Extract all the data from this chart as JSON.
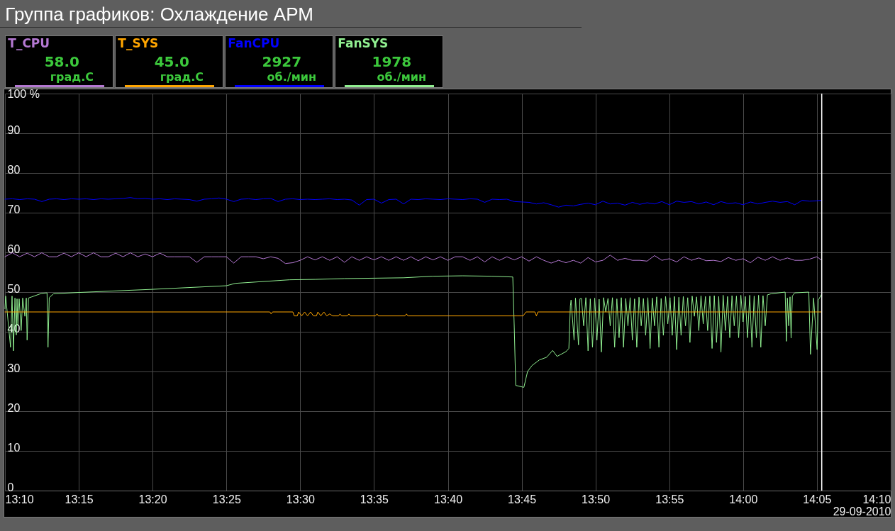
{
  "chart_data": {
    "type": "line",
    "title": "Группа графиков: Охлаждение АРМ",
    "xlabel": "29-09-2010",
    "x": [
      13.1667,
      13.175,
      13.1833,
      13.1917,
      13.2,
      13.2083,
      13.2167,
      13.225,
      13.2333,
      13.2417,
      13.25,
      13.2583,
      13.2667,
      13.275,
      13.2833,
      13.2917,
      13.3,
      13.3083,
      13.3167,
      13.325,
      13.3333,
      13.3417,
      13.35,
      13.3583,
      13.3667,
      13.375,
      13.3833,
      13.3917,
      13.4,
      13.4083,
      13.4167,
      13.425,
      13.4333,
      13.4417,
      13.45,
      13.4583,
      13.4667,
      13.475,
      13.4833,
      13.4917,
      13.5,
      13.5083,
      13.5167,
      13.525,
      13.5333,
      13.5417,
      13.55,
      13.5583,
      13.5667,
      13.575,
      13.5833,
      13.5917,
      13.6,
      13.6083,
      13.6167,
      13.625,
      13.6333,
      13.6417,
      13.65,
      13.6583,
      13.6667,
      13.675,
      13.6833,
      13.6917,
      13.7,
      13.7083,
      13.7167,
      13.725,
      13.7333,
      13.7417,
      13.75,
      13.7583,
      13.7667,
      13.775,
      13.7833,
      13.7917,
      13.8,
      13.8083,
      13.8167,
      13.825,
      13.8333,
      13.8417,
      13.85,
      13.8583,
      13.8667,
      13.875,
      13.8833,
      13.8917,
      13.9,
      13.9083,
      13.9167,
      13.925,
      13.9333,
      13.9417,
      13.95,
      13.9583,
      13.9667,
      13.975,
      13.9833,
      13.9917,
      14,
      14.0083,
      14.0167,
      14.025,
      14.0333,
      14.0417,
      14.05,
      14.0583,
      14.0667,
      14.075,
      14.0833,
      14.0888
    ],
    "series": [
      {
        "name": "T_CPU",
        "color": "#b478d2",
        "values": [
          58.9,
          59.9,
          58.9,
          59.8,
          58.9,
          59.9,
          58.9,
          58.9,
          59.8,
          58.9,
          59.9,
          58.9,
          59.9,
          58.9,
          58.9,
          59.8,
          58.9,
          59.9,
          58.9,
          59.6,
          58.9,
          59.8,
          58.9,
          58.9,
          58.9,
          58.9,
          57.5,
          58.9,
          58.9,
          58.9,
          58.9,
          57.3,
          58.9,
          58.9,
          58.9,
          58.4,
          58.9,
          58.5,
          57.2,
          57.4,
          58.0,
          58.9,
          58.1,
          58.9,
          58.0,
          58.9,
          57.5,
          58.9,
          58.0,
          58.9,
          58.1,
          58.9,
          58.0,
          58.9,
          58.0,
          58.9,
          57.9,
          58.9,
          58.1,
          58.9,
          58.0,
          58.9,
          58.9,
          58.0,
          58.9,
          57.6,
          58.9,
          58.0,
          58.9,
          58.1,
          58.9,
          57.8,
          58.9,
          58.0,
          57.3,
          58.0,
          57.4,
          58.0,
          57.3,
          58.7,
          57.6,
          58.0,
          59.3,
          58.0,
          58.5,
          58.0,
          58.0,
          57.8,
          59.2,
          58.0,
          58.4,
          57.6,
          58.9,
          58.0,
          58.6,
          57.9,
          58.0,
          57.7,
          58.7,
          58.0,
          58.4,
          57.4,
          58.8,
          58.0,
          58.9,
          58.0,
          58.6,
          58.0,
          58.0,
          58.3,
          58.9,
          58.0
        ]
      },
      {
        "name": "T_SYS",
        "color": "#ffa500",
        "x": [
          13.1667,
          13.4657,
          13.4672,
          13.4688,
          13.4917,
          13.4933,
          13.4967,
          13.4983,
          13.5017,
          13.505,
          13.5083,
          13.5117,
          13.515,
          13.5183,
          13.52,
          13.5233,
          13.5267,
          13.53,
          13.5333,
          13.5367,
          13.5433,
          13.545,
          13.5467,
          13.5533,
          13.555,
          13.5567,
          13.585,
          13.5867,
          13.5883,
          13.6183,
          13.62,
          13.6217,
          13.7517,
          13.7533,
          13.755,
          13.765,
          13.7667,
          13.7683,
          14.0888
        ],
        "values": [
          45.0,
          45.0,
          44.5,
          45.0,
          45.0,
          44.0,
          44.0,
          45.0,
          44.0,
          45.0,
          44.0,
          45.0,
          44.0,
          44.0,
          45.0,
          44.0,
          45.0,
          44.0,
          44.5,
          44.0,
          44.0,
          44.5,
          44.0,
          44.0,
          44.5,
          44.0,
          44.0,
          44.5,
          44.0,
          44.0,
          44.5,
          44.0,
          44.0,
          44.5,
          45.0,
          45.0,
          44.0,
          45.0,
          45.0
        ]
      },
      {
        "name": "FanCPU",
        "color": "#0000ff",
        "values": [
          73.4,
          73.5,
          73.3,
          73.5,
          73.4,
          72.8,
          73.4,
          73.5,
          73.3,
          73.5,
          73.4,
          73.5,
          73.3,
          73.5,
          73.4,
          73.5,
          73.6,
          73.8,
          73.5,
          73.6,
          73.4,
          73.5,
          73.3,
          73.5,
          73.4,
          73.3,
          72.9,
          73.4,
          73.5,
          73.7,
          73.4,
          72.8,
          73.4,
          73.5,
          73.3,
          73.5,
          73.6,
          72.8,
          73.4,
          73.5,
          73.3,
          73.4,
          73.3,
          73.4,
          73.5,
          73.3,
          73.4,
          73.2,
          71.9,
          73.3,
          73.4,
          72.4,
          73.3,
          73.4,
          72.2,
          73.4,
          73.3,
          73.5,
          73.4,
          73.3,
          73.5,
          73.4,
          73.3,
          73.5,
          73.4,
          72.6,
          73.4,
          73.3,
          73.4,
          72.8,
          72.7,
          72.6,
          72.2,
          72.5,
          72.0,
          71.4,
          71.9,
          71.7,
          72.1,
          72.4,
          72.0,
          72.9,
          72.2,
          72.4,
          71.9,
          72.6,
          72.1,
          72.5,
          72.2,
          72.8,
          72.0,
          72.9,
          72.6,
          72.8,
          72.2,
          72.7,
          72.0,
          72.8,
          72.3,
          72.5,
          72.0,
          72.7,
          72.2,
          72.6,
          72.9,
          72.6,
          72.8,
          72.0,
          73.1,
          72.9,
          73.0,
          73.1
        ]
      },
      {
        "name": "FanSYS",
        "color": "#90ee90",
        "x": [
          13.1667,
          13.1675,
          13.173,
          13.1747,
          13.1763,
          13.178,
          13.1795,
          13.1803,
          13.1813,
          13.1827,
          13.185,
          13.1867,
          13.1892,
          13.1908,
          13.1917,
          13.1933,
          13.197,
          13.2083,
          13.2142,
          13.2153,
          13.2167,
          13.2217,
          13.25,
          13.3333,
          13.4167,
          13.4267,
          13.4883,
          13.5167,
          13.55,
          13.5833,
          13.6167,
          13.65,
          13.6833,
          13.7167,
          13.74,
          13.7417,
          13.7433,
          13.7525,
          13.7567,
          13.7617,
          13.77,
          13.7783,
          13.785,
          13.79,
          13.8,
          13.8033,
          13.805,
          13.8058,
          13.8092,
          13.8108,
          13.8142,
          13.8158,
          13.8175,
          13.82,
          13.8225,
          13.825,
          13.8275,
          13.83,
          13.8325,
          13.835,
          13.8375,
          13.84,
          13.8425,
          13.845,
          13.8475,
          13.85,
          13.8525,
          13.855,
          13.8575,
          13.86,
          13.8625,
          13.865,
          13.8675,
          13.87,
          13.8725,
          13.875,
          13.8775,
          13.88,
          13.8825,
          13.885,
          13.8875,
          13.89,
          13.8925,
          13.895,
          13.8975,
          13.9,
          13.9025,
          13.905,
          13.9075,
          13.91,
          13.9125,
          13.915,
          13.9175,
          13.92,
          13.9225,
          13.925,
          13.9275,
          13.93,
          13.9325,
          13.935,
          13.9375,
          13.94,
          13.9425,
          13.945,
          13.9475,
          13.95,
          13.9525,
          13.955,
          13.9575,
          13.96,
          13.9625,
          13.965,
          13.9675,
          13.97,
          13.9725,
          13.975,
          13.9775,
          13.98,
          13.9825,
          13.985,
          13.9875,
          13.99,
          13.9925,
          13.995,
          13.9975,
          14,
          14.0025,
          14.005,
          14.0075,
          14.01,
          14.0125,
          14.015,
          14.0175,
          14.02,
          14.0225,
          14.025,
          14.0275,
          14.032,
          14.0475,
          14.0489,
          14.05,
          14.0515,
          14.053,
          14.0542,
          14.0556,
          14.0582,
          14.0742,
          14.0761,
          14.0796,
          14.0836,
          14.0849,
          14.0888
        ],
        "values": [
          45.8,
          49.0,
          36.1,
          49.0,
          35.2,
          48.5,
          39.2,
          48.3,
          41.5,
          48.3,
          40.3,
          48.5,
          43.9,
          48.5,
          37.9,
          48.5,
          48.8,
          49.7,
          49.8,
          36.1,
          48.6,
          49.6,
          49.9,
          50.7,
          51.6,
          52.2,
          53.1,
          53.2,
          53.4,
          53.5,
          53.6,
          54.0,
          54.1,
          54.0,
          53.8,
          40.9,
          26.5,
          26.0,
          30.0,
          31.5,
          32.9,
          33.6,
          35.3,
          33.8,
          35.0,
          35.8,
          46.5,
          48.0,
          37.9,
          48.5,
          36.7,
          48.3,
          48.4,
          41.5,
          48.6,
          35.2,
          48.3,
          36.1,
          48.5,
          37.9,
          48.2,
          34.9,
          48.6,
          45.0,
          48.4,
          41.5,
          48.6,
          36.1,
          48.3,
          38.5,
          48.6,
          36.1,
          48.4,
          41.5,
          48.6,
          37.9,
          48.3,
          36.1,
          48.7,
          41.5,
          48.4,
          39.1,
          48.6,
          35.8,
          48.5,
          41.5,
          48.8,
          36.1,
          48.4,
          39.1,
          48.9,
          42.0,
          48.6,
          39.1,
          48.9,
          35.5,
          48.7,
          39.1,
          48.9,
          41.5,
          48.6,
          37.3,
          49.0,
          43.9,
          48.8,
          40.3,
          49.1,
          42.0,
          48.9,
          40.3,
          49.0,
          35.8,
          49.1,
          37.3,
          48.9,
          34.9,
          49.2,
          40.3,
          48.9,
          38.5,
          49.1,
          41.5,
          49.0,
          38.5,
          49.2,
          42.5,
          48.9,
          38.5,
          49.2,
          36.1,
          49.0,
          38.5,
          49.2,
          36.1,
          49.1,
          41.5,
          49.3,
          49.6,
          50.0,
          37.6,
          48.5,
          41.5,
          48.8,
          38.4,
          49.0,
          49.8,
          50.0,
          34.3,
          48.5,
          35.5,
          48.0,
          49.5
        ]
      }
    ],
    "xlim": [
      13.1667,
      14.1667
    ],
    "xticks": [
      {
        "value": 13.1667,
        "label": "13:10"
      },
      {
        "value": 13.25,
        "label": "13:15"
      },
      {
        "value": 13.3333,
        "label": "13:20"
      },
      {
        "value": 13.4167,
        "label": "13:25"
      },
      {
        "value": 13.5,
        "label": "13:30"
      },
      {
        "value": 13.5833,
        "label": "13:35"
      },
      {
        "value": 13.6667,
        "label": "13:40"
      },
      {
        "value": 13.75,
        "label": "13:45"
      },
      {
        "value": 13.8333,
        "label": "13:50"
      },
      {
        "value": 13.9167,
        "label": "13:55"
      },
      {
        "value": 14,
        "label": "14:00"
      },
      {
        "value": 14.0833,
        "label": "14:05"
      },
      {
        "value": 14.1667,
        "label": "14:10"
      }
    ],
    "ylim": [
      0,
      100
    ],
    "yticks": [
      0,
      10,
      20,
      30,
      40,
      50,
      60,
      70,
      80,
      90,
      {
        "value": 100,
        "label": "100 %"
      }
    ],
    "ref_lines": [
      {
        "axis": "x",
        "value": 14.0888,
        "color": "#ffffff"
      }
    ],
    "annotations": [
      "58.0",
      "град.С",
      "45.0",
      "град.С",
      "2927",
      "об./мин",
      "1978",
      "об./мин"
    ],
    "grid": true,
    "legend": "top left"
  }
}
